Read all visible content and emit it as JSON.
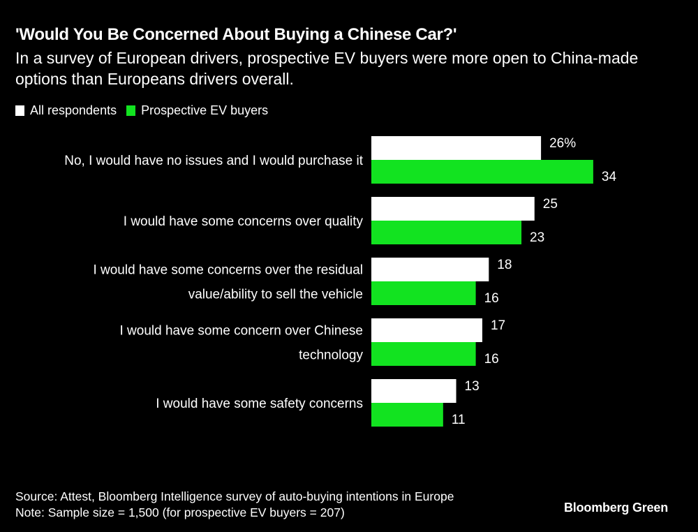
{
  "chart_data": {
    "type": "bar",
    "orientation": "horizontal",
    "title": "'Would You Be Concerned About Buying a Chinese Car?'",
    "subtitle": "In a survey of European drivers, prospective EV buyers were more open to China-made options than Europeans drivers overall.",
    "categories": [
      [
        "No, I would have no issues and I would purchase it"
      ],
      [
        "I would have some concerns over quality"
      ],
      [
        "I would have some concerns over the residual",
        "value/ability to sell the vehicle"
      ],
      [
        "I would have some concern over Chinese",
        "technology"
      ],
      [
        "I would have some safety concerns"
      ]
    ],
    "series": [
      {
        "name": "All respondents",
        "color": "#ffffff",
        "values": [
          26,
          25,
          18,
          17,
          13
        ]
      },
      {
        "name": "Prospective EV buyers",
        "color": "#12e320",
        "values": [
          34,
          23,
          16,
          16,
          11
        ]
      }
    ],
    "value_suffix_first": "%",
    "xlim": [
      0,
      40
    ],
    "grid": false,
    "legend_position": "top-left",
    "xlabel": "",
    "ylabel": ""
  },
  "footer": {
    "source": "Source: Attest, Bloomberg Intelligence survey of auto-buying intentions in Europe",
    "note": "Note: Sample size = 1,500 (for prospective EV buyers = 207)",
    "brand": "Bloomberg Green"
  }
}
